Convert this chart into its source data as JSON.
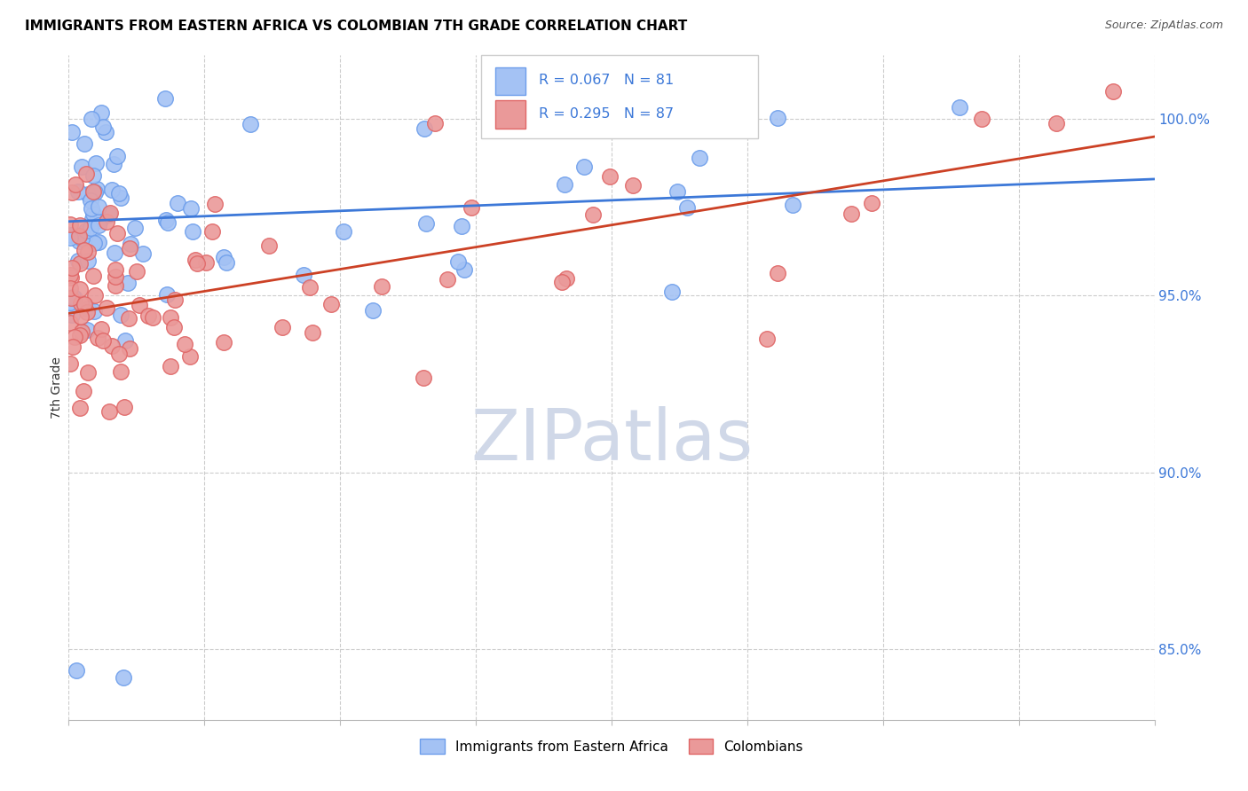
{
  "title": "IMMIGRANTS FROM EASTERN AFRICA VS COLOMBIAN 7TH GRADE CORRELATION CHART",
  "source": "Source: ZipAtlas.com",
  "ylabel": "7th Grade",
  "ytick_values": [
    85.0,
    90.0,
    95.0,
    100.0
  ],
  "xmin": 0.0,
  "xmax": 40.0,
  "ymin": 83.0,
  "ymax": 101.8,
  "legend_blue_label": "Immigrants from Eastern Africa",
  "legend_pink_label": "Colombians",
  "R_blue": 0.067,
  "N_blue": 81,
  "R_pink": 0.295,
  "N_pink": 87,
  "blue_color": "#a4c2f4",
  "pink_color": "#ea9999",
  "blue_edge_color": "#6d9eeb",
  "pink_edge_color": "#e06666",
  "blue_line_color": "#3c78d8",
  "pink_line_color": "#cc4125",
  "watermark_color": "#d0d8e8",
  "blue_label_color": "#3c78d8",
  "blue_line_y0": 97.1,
  "blue_line_y1": 98.3,
  "pink_line_y0": 94.5,
  "pink_line_y1": 99.5
}
